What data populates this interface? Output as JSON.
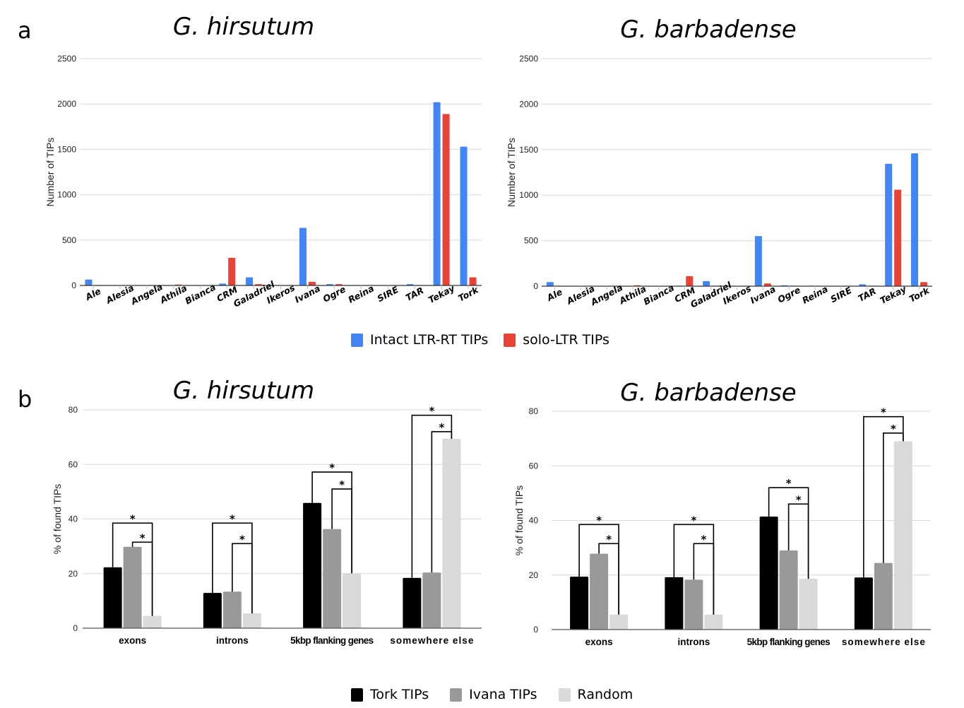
{
  "panels": {
    "a": {
      "letter": "a"
    },
    "b": {
      "letter": "b"
    }
  },
  "legends": {
    "a": [
      {
        "label": "Intact LTR-RT TIPs",
        "color": "#4285f4"
      },
      {
        "label": "solo-LTR TIPs",
        "color": "#ea4335"
      }
    ],
    "b": [
      {
        "label": "Tork TIPs",
        "color": "#000000"
      },
      {
        "label": "Ivana TIPs",
        "color": "#999999"
      },
      {
        "label": "Random",
        "color": "#d9d9d9"
      }
    ]
  },
  "chart_data": [
    {
      "id": "a-hirsutum",
      "type": "bar",
      "title": "G. hirsutum",
      "xlabel": "",
      "ylabel": "Number of TIPs",
      "ylim": [
        0,
        2500
      ],
      "yticks": [
        "0",
        "500",
        "1000",
        "1500",
        "2000",
        "2500"
      ],
      "grid": true,
      "categories": [
        "Ale",
        "Alesia",
        "Angela",
        "Athila",
        "Bianca",
        "CRM",
        "Galadriel",
        "Ikeros",
        "Ivana",
        "Ogre",
        "Reina",
        "SIRE",
        "TAR",
        "Tekay",
        "Tork"
      ],
      "series": [
        {
          "name": "Intact LTR-RT TIPs",
          "color": "#4285f4",
          "values": [
            65,
            0,
            0,
            0,
            0,
            20,
            90,
            0,
            635,
            15,
            5,
            0,
            15,
            2020,
            1530
          ]
        },
        {
          "name": "solo-LTR TIPs",
          "color": "#ea4335",
          "values": [
            5,
            0,
            0,
            10,
            0,
            305,
            15,
            0,
            40,
            15,
            0,
            0,
            5,
            1890,
            90
          ]
        }
      ]
    },
    {
      "id": "a-barbadense",
      "type": "bar",
      "title": "G. barbadense",
      "xlabel": "",
      "ylabel": "Number of TIPs",
      "ylim": [
        0,
        2500
      ],
      "yticks": [
        "0",
        "500",
        "1000",
        "1500",
        "2000",
        "2500"
      ],
      "grid": true,
      "categories": [
        "Ale",
        "Alesia",
        "Angela",
        "Athila",
        "Bianca",
        "CRM",
        "Galadriel",
        "Ikeros",
        "Ivana",
        "Ogre",
        "Reina",
        "SIRE",
        "TAR",
        "Tekay",
        "Tork"
      ],
      "series": [
        {
          "name": "Intact LTR-RT TIPs",
          "color": "#4285f4",
          "values": [
            45,
            0,
            0,
            0,
            0,
            5,
            55,
            0,
            550,
            10,
            5,
            0,
            20,
            1345,
            1460
          ]
        },
        {
          "name": "solo-LTR TIPs",
          "color": "#ea4335",
          "values": [
            5,
            0,
            0,
            10,
            0,
            110,
            5,
            0,
            30,
            5,
            0,
            0,
            5,
            1060,
            45
          ]
        }
      ]
    },
    {
      "id": "b-hirsutum",
      "type": "bar",
      "title": "G. hirsutum",
      "xlabel": "",
      "ylabel": "% of found TIPs",
      "ylim": [
        0,
        80
      ],
      "yticks": [
        "0",
        "20",
        "40",
        "60",
        "80"
      ],
      "grid": true,
      "categories": [
        "exons",
        "introns",
        "5kbp flanking genes",
        "somewhere else"
      ],
      "series": [
        {
          "name": "Tork TIPs",
          "color": "#000000",
          "values": [
            22.3,
            12.9,
            45.9,
            18.4
          ]
        },
        {
          "name": "Ivana TIPs",
          "color": "#999999",
          "values": [
            29.8,
            13.4,
            36.3,
            20.4
          ]
        },
        {
          "name": "Random",
          "color": "#d9d9d9",
          "values": [
            4.5,
            5.4,
            20.1,
            69.4
          ]
        }
      ],
      "annotations": [
        {
          "category": "exons",
          "brackets": [
            {
              "from": "Tork TIPs",
              "to": "Random",
              "y": 38.5,
              "label": "*"
            },
            {
              "from": "Ivana TIPs",
              "to": "Random",
              "y": 31.5,
              "label": "*"
            }
          ]
        },
        {
          "category": "introns",
          "brackets": [
            {
              "from": "Tork TIPs",
              "to": "Random",
              "y": 38.5,
              "label": "*"
            },
            {
              "from": "Ivana TIPs",
              "to": "Random",
              "y": 31,
              "label": "*"
            }
          ]
        },
        {
          "category": "5kbp flanking genes",
          "brackets": [
            {
              "from": "Tork TIPs",
              "to": "Random",
              "y": 57.2,
              "label": "*"
            },
            {
              "from": "Ivana TIPs",
              "to": "Random",
              "y": 51,
              "label": "*"
            }
          ]
        },
        {
          "category": "somewhere else",
          "brackets": [
            {
              "from": "Tork TIPs",
              "to": "Random",
              "y": 78,
              "label": "*"
            },
            {
              "from": "Ivana TIPs",
              "to": "Random",
              "y": 72,
              "label": "*"
            }
          ]
        }
      ]
    },
    {
      "id": "b-barbadense",
      "type": "bar",
      "title": "G. barbadense",
      "xlabel": "",
      "ylabel": "% of found TIPs",
      "ylim": [
        0,
        80
      ],
      "yticks": [
        "0",
        "20",
        "40",
        "60",
        "80"
      ],
      "grid": true,
      "categories": [
        "exons",
        "introns",
        "5kbp flanking genes",
        "somewhere else"
      ],
      "series": [
        {
          "name": "Tork TIPs",
          "color": "#000000",
          "values": [
            19.4,
            19.2,
            41.4,
            19.1
          ]
        },
        {
          "name": "Ivana TIPs",
          "color": "#999999",
          "values": [
            27.8,
            18.3,
            29.0,
            24.4
          ]
        },
        {
          "name": "Random",
          "color": "#d9d9d9",
          "values": [
            5.5,
            5.5,
            18.6,
            69.0
          ]
        }
      ],
      "annotations": [
        {
          "category": "exons",
          "brackets": [
            {
              "from": "Tork TIPs",
              "to": "Random",
              "y": 38.5,
              "label": "*"
            },
            {
              "from": "Ivana TIPs",
              "to": "Random",
              "y": 31.5,
              "label": "*"
            }
          ]
        },
        {
          "category": "introns",
          "brackets": [
            {
              "from": "Tork TIPs",
              "to": "Random",
              "y": 38.5,
              "label": "*"
            },
            {
              "from": "Ivana TIPs",
              "to": "Random",
              "y": 31.5,
              "label": "*"
            }
          ]
        },
        {
          "category": "5kbp flanking genes",
          "brackets": [
            {
              "from": "Tork TIPs",
              "to": "Random",
              "y": 52,
              "label": "*"
            },
            {
              "from": "Ivana TIPs",
              "to": "Random",
              "y": 46,
              "label": "*"
            }
          ]
        },
        {
          "category": "somewhere else",
          "brackets": [
            {
              "from": "Tork TIPs",
              "to": "Random",
              "y": 78,
              "label": "*"
            },
            {
              "from": "Ivana TIPs",
              "to": "Random",
              "y": 72,
              "label": "*"
            }
          ]
        }
      ]
    }
  ]
}
